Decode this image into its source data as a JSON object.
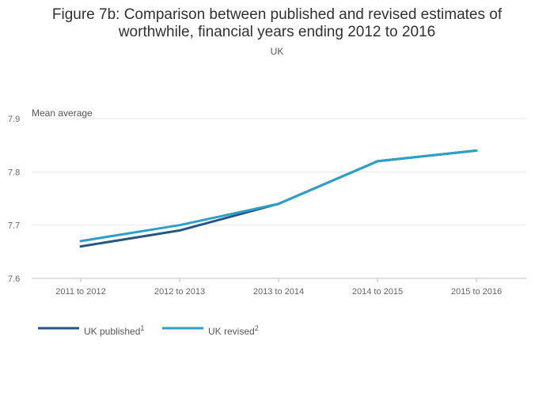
{
  "chart_data": {
    "type": "line",
    "title_line1": "Figure 7b: Comparison between published and revised estimates of",
    "title_line2": "worthwhile, financial years ending 2012 to 2016",
    "subtitle": "UK",
    "ylabel": "Mean average",
    "xlabel": "",
    "categories": [
      "2011 to 2012",
      "2012 to 2013",
      "2013 to 2014",
      "2014 to 2015",
      "2015 to 2016"
    ],
    "ylim": [
      7.6,
      7.9
    ],
    "yticks": [
      "7.6",
      "7.7",
      "7.8",
      "7.9"
    ],
    "series": [
      {
        "name": "UK published",
        "sup": "1",
        "color": "#27577f",
        "values": [
          7.66,
          7.69,
          7.74,
          7.82,
          7.84
        ]
      },
      {
        "name": "UK revised",
        "sup": "2",
        "color": "#2d9fc8",
        "values": [
          7.67,
          7.7,
          7.74,
          7.82,
          7.84
        ]
      }
    ],
    "grid": true,
    "legend_position": "bottom-left"
  }
}
